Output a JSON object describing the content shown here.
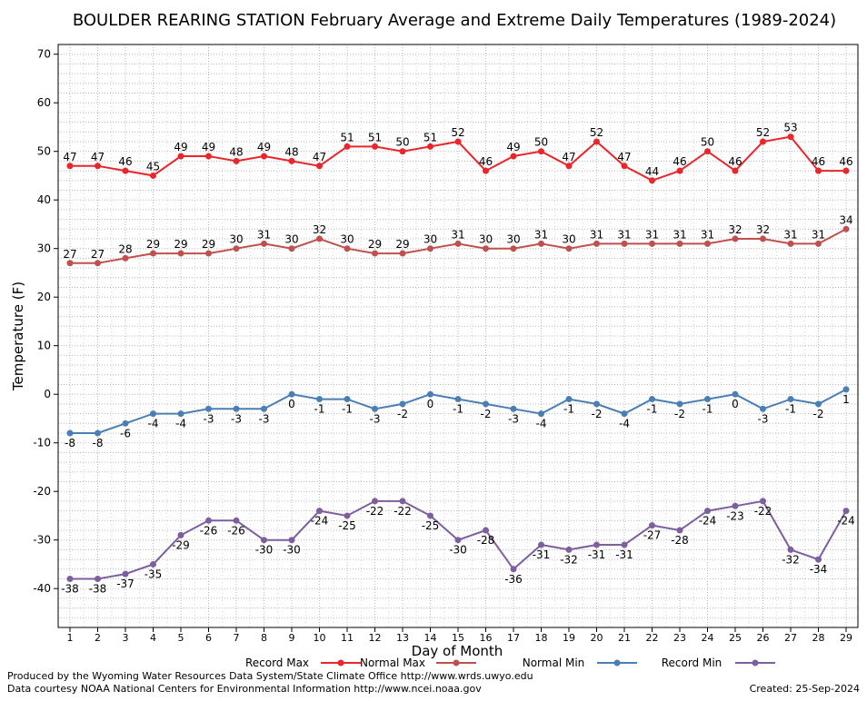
{
  "chart_data": {
    "type": "line",
    "title": "BOULDER REARING STATION February Average and Extreme Daily Temperatures (1989-2024)",
    "xlabel": "Day of Month",
    "ylabel": "Temperature (F)",
    "ylim": [
      -48,
      72
    ],
    "yticks": [
      -40,
      -30,
      -20,
      -10,
      0,
      10,
      20,
      30,
      40,
      50,
      60,
      70
    ],
    "grid": true,
    "legend_position": "bottom",
    "categories": [
      "1",
      "2",
      "3",
      "4",
      "5",
      "6",
      "7",
      "8",
      "9",
      "10",
      "11",
      "12",
      "13",
      "14",
      "15",
      "16",
      "17",
      "18",
      "19",
      "20",
      "21",
      "22",
      "23",
      "24",
      "25",
      "26",
      "27",
      "28",
      "29"
    ],
    "series": [
      {
        "name": "Record Max",
        "color": "#e8262b",
        "label_position": "above",
        "values": [
          47,
          47,
          46,
          45,
          49,
          49,
          48,
          49,
          48,
          47,
          51,
          51,
          50,
          51,
          52,
          46,
          49,
          50,
          47,
          52,
          47,
          44,
          46,
          50,
          46,
          52,
          53,
          46,
          46
        ]
      },
      {
        "name": "Normal Max",
        "color": "#c0504d",
        "label_position": "above",
        "values": [
          27,
          27,
          28,
          29,
          29,
          29,
          30,
          31,
          30,
          32,
          30,
          29,
          29,
          30,
          31,
          30,
          30,
          31,
          30,
          31,
          31,
          31,
          31,
          31,
          32,
          32,
          31,
          31,
          34
        ]
      },
      {
        "name": "Normal Min",
        "color": "#4a7fb5",
        "label_position": "below",
        "values": [
          -8,
          -8,
          -6,
          -4,
          -4,
          -3,
          -3,
          -3,
          0,
          -1,
          -1,
          -3,
          -2,
          0,
          -1,
          -2,
          -3,
          -4,
          -1,
          -2,
          -4,
          -1,
          -2,
          -1,
          0,
          -3,
          -1,
          -2,
          1
        ]
      },
      {
        "name": "Record Min",
        "color": "#7d5fa0",
        "label_position": "below",
        "values": [
          -38,
          -38,
          -37,
          -35,
          -29,
          -26,
          -26,
          -30,
          -30,
          -24,
          -25,
          -22,
          -22,
          -25,
          -30,
          -28,
          -36,
          -31,
          -32,
          -31,
          -31,
          -27,
          -28,
          -24,
          -23,
          -22,
          -32,
          -34,
          -24
        ]
      }
    ]
  },
  "footer": {
    "credit_line1": "Produced by the Wyoming Water Resources Data System/State Climate Office http://www.wrds.uwyo.edu",
    "credit_line2": "Data courtesy NOAA National Centers for Environmental Information http://www.ncei.noaa.gov",
    "created": "Created:  25-Sep-2024"
  }
}
